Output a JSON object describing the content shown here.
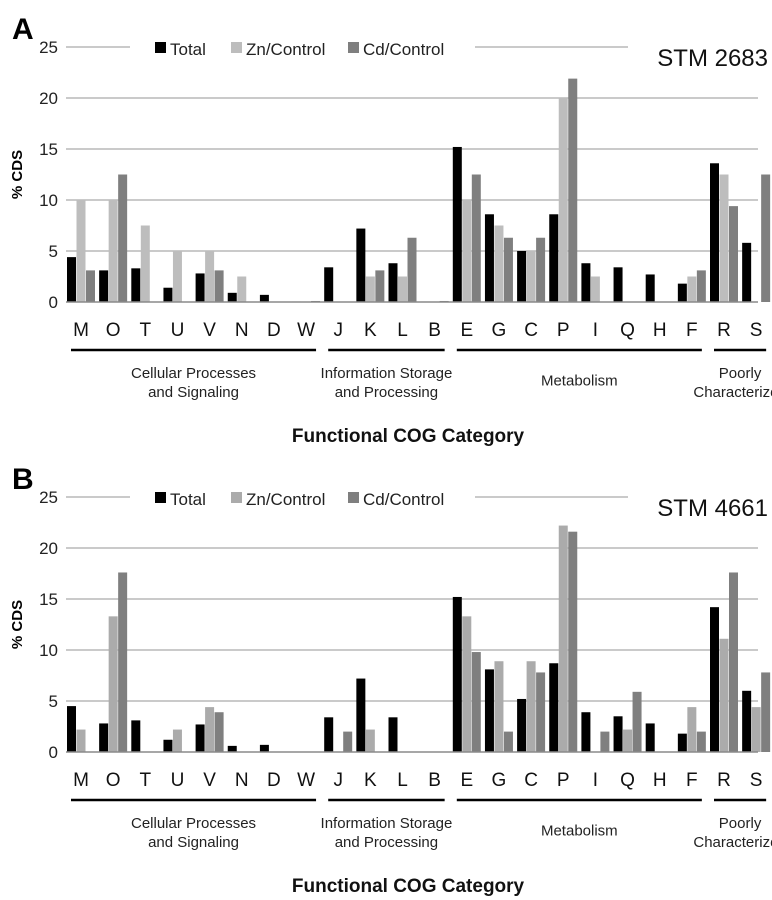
{
  "chart_data": [
    {
      "panel_letter": "A",
      "type": "bar",
      "title": "STM 2683",
      "xlabel": "Functional COG Category",
      "ylabel": "% CDS",
      "ylim": [
        0,
        25
      ],
      "yticks": [
        0,
        5,
        10,
        15,
        20,
        25
      ],
      "grid": true,
      "legend_position": "top-center",
      "categories": [
        "M",
        "O",
        "T",
        "U",
        "V",
        "N",
        "D",
        "W",
        "J",
        "K",
        "L",
        "B",
        "E",
        "G",
        "C",
        "P",
        "I",
        "Q",
        "H",
        "F",
        "R",
        "S"
      ],
      "groups": [
        {
          "label": "Cellular Processes and Signaling",
          "lines": [
            "Cellular Processes",
            "and Signaling"
          ],
          "categories": [
            "M",
            "O",
            "T",
            "U",
            "V",
            "N",
            "D",
            "W"
          ]
        },
        {
          "label": "Information Storage and Processing",
          "lines": [
            "Information Storage",
            "and Processing"
          ],
          "categories": [
            "J",
            "K",
            "L",
            "B"
          ]
        },
        {
          "label": "Metabolism",
          "lines": [
            "Metabolism"
          ],
          "categories": [
            "E",
            "G",
            "C",
            "P",
            "I",
            "Q",
            "H",
            "F"
          ]
        },
        {
          "label": "Poorly Characterized",
          "lines": [
            "Poorly",
            "Characterized"
          ],
          "categories": [
            "R",
            "S"
          ]
        }
      ],
      "series": [
        {
          "name": "Total",
          "color": "#000000",
          "values": [
            4.4,
            3.1,
            3.3,
            1.4,
            2.8,
            0.9,
            0.7,
            0.05,
            3.4,
            7.2,
            3.8,
            0.05,
            15.2,
            8.6,
            5.0,
            8.6,
            3.8,
            3.4,
            2.7,
            1.8,
            13.6,
            5.8
          ]
        },
        {
          "name": "Zn/Control",
          "color": "#bdbdbd",
          "values": [
            10.0,
            10.0,
            7.5,
            5.0,
            5.0,
            2.5,
            0,
            0,
            0,
            2.5,
            2.5,
            0,
            10.0,
            7.5,
            5.0,
            20.0,
            2.5,
            0,
            0,
            2.5,
            12.5,
            0
          ]
        },
        {
          "name": "Cd/Control",
          "color": "#7f7f7f",
          "values": [
            3.1,
            12.5,
            0,
            0,
            3.1,
            0,
            0,
            0.1,
            0,
            3.1,
            6.3,
            0.1,
            12.5,
            6.3,
            6.3,
            21.9,
            0,
            0,
            0,
            3.1,
            9.4,
            12.5
          ]
        }
      ]
    },
    {
      "panel_letter": "B",
      "type": "bar",
      "title": "STM 4661",
      "xlabel": "Functional COG Category",
      "ylabel": "% CDS",
      "ylim": [
        0,
        25
      ],
      "yticks": [
        0,
        5,
        10,
        15,
        20,
        25
      ],
      "grid": true,
      "legend_position": "top-center",
      "categories": [
        "M",
        "O",
        "T",
        "U",
        "V",
        "N",
        "D",
        "W",
        "J",
        "K",
        "L",
        "B",
        "E",
        "G",
        "C",
        "P",
        "I",
        "Q",
        "H",
        "F",
        "R",
        "S"
      ],
      "groups": [
        {
          "label": "Cellular Processes and Signaling",
          "lines": [
            "Cellular Processes",
            "and Signaling"
          ],
          "categories": [
            "M",
            "O",
            "T",
            "U",
            "V",
            "N",
            "D",
            "W"
          ]
        },
        {
          "label": "Information Storage and Processing",
          "lines": [
            "Information Storage",
            "and Processing"
          ],
          "categories": [
            "J",
            "K",
            "L",
            "B"
          ]
        },
        {
          "label": "Metabolism",
          "lines": [
            "Metabolism"
          ],
          "categories": [
            "E",
            "G",
            "C",
            "P",
            "I",
            "Q",
            "H",
            "F"
          ]
        },
        {
          "label": "Poorly Characterized",
          "lines": [
            "Poorly",
            "Characterized"
          ],
          "categories": [
            "R",
            "S"
          ]
        }
      ],
      "series": [
        {
          "name": "Total",
          "color": "#000000",
          "values": [
            4.5,
            2.8,
            3.1,
            1.2,
            2.7,
            0.6,
            0.7,
            0,
            3.4,
            7.2,
            3.4,
            0,
            15.2,
            8.1,
            5.2,
            8.7,
            3.9,
            3.5,
            2.8,
            1.8,
            14.2,
            6.0
          ]
        },
        {
          "name": "Zn/Control",
          "color": "#ababab",
          "values": [
            2.2,
            13.3,
            0,
            2.2,
            4.4,
            0,
            0,
            0,
            0,
            2.2,
            0,
            0,
            13.3,
            8.9,
            8.9,
            22.2,
            0,
            2.2,
            0,
            4.4,
            11.1,
            4.4
          ]
        },
        {
          "name": "Cd/Control",
          "color": "#7f7f7f",
          "values": [
            0,
            17.6,
            0,
            0,
            3.9,
            0,
            0,
            0,
            2.0,
            0,
            0,
            0,
            9.8,
            2.0,
            7.8,
            21.6,
            2.0,
            5.9,
            0,
            2.0,
            17.6,
            7.8
          ]
        }
      ]
    }
  ]
}
